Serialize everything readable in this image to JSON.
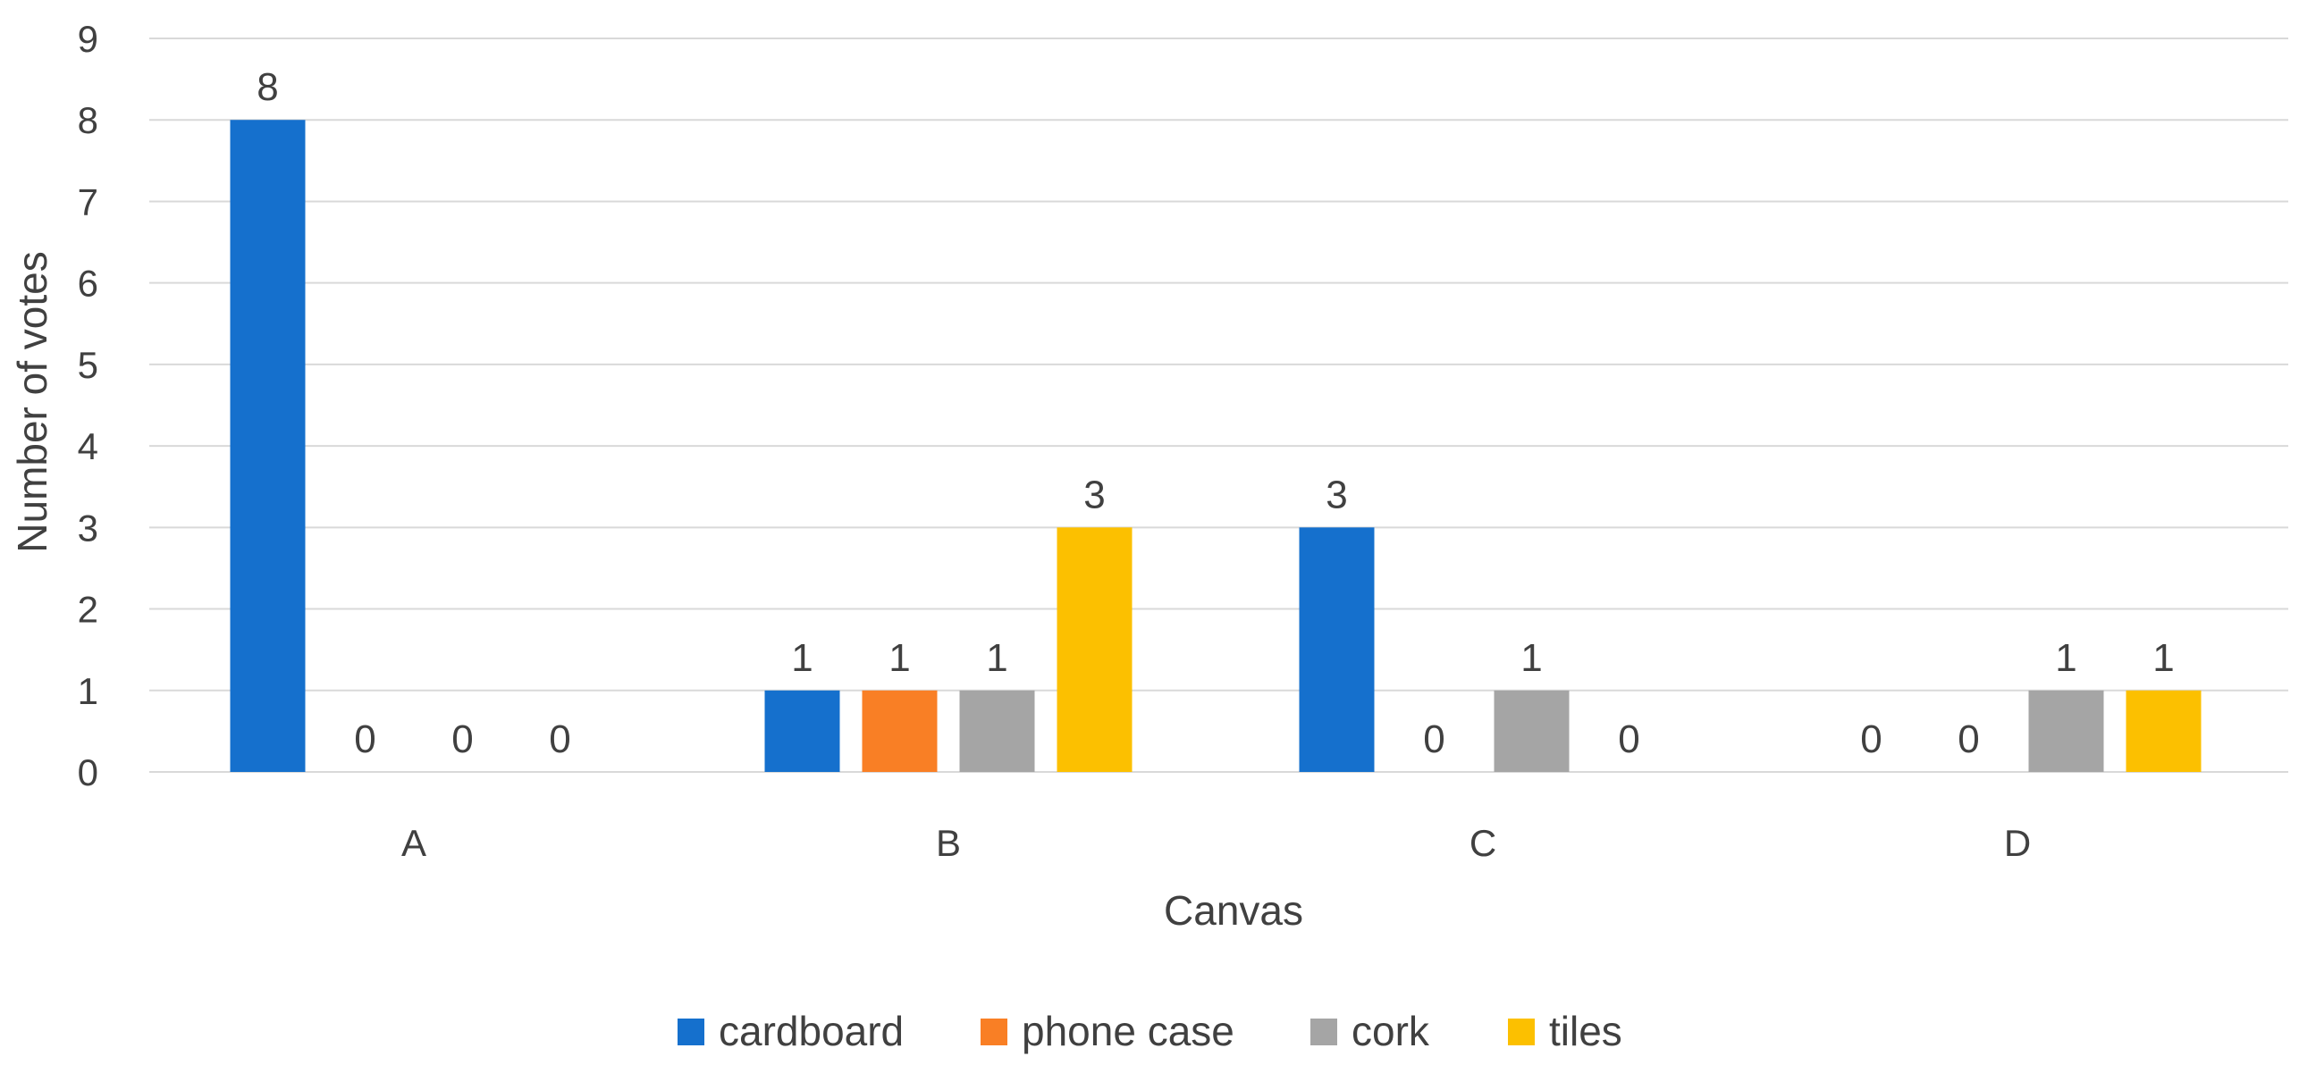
{
  "chart_data": {
    "type": "bar",
    "categories": [
      "A",
      "B",
      "C",
      "D"
    ],
    "series": [
      {
        "name": "cardboard",
        "color": "#1570CD",
        "values": [
          8,
          1,
          3,
          0
        ]
      },
      {
        "name": "phone case",
        "color": "#F97F25",
        "values": [
          0,
          1,
          0,
          0
        ]
      },
      {
        "name": "cork",
        "color": "#A5A5A5",
        "values": [
          0,
          1,
          1,
          1
        ]
      },
      {
        "name": "tiles",
        "color": "#FCC000",
        "values": [
          0,
          3,
          0,
          1
        ]
      }
    ],
    "title": "",
    "xlabel": "Canvas",
    "ylabel": "Number of votes",
    "ylim": [
      0,
      9
    ],
    "yticks": [
      0,
      1,
      2,
      3,
      4,
      5,
      6,
      7,
      8,
      9
    ],
    "grid": true,
    "legend_position": "bottom",
    "data_labels": true,
    "gridline_color": "#D9D9D9",
    "text_color": "#404040"
  }
}
